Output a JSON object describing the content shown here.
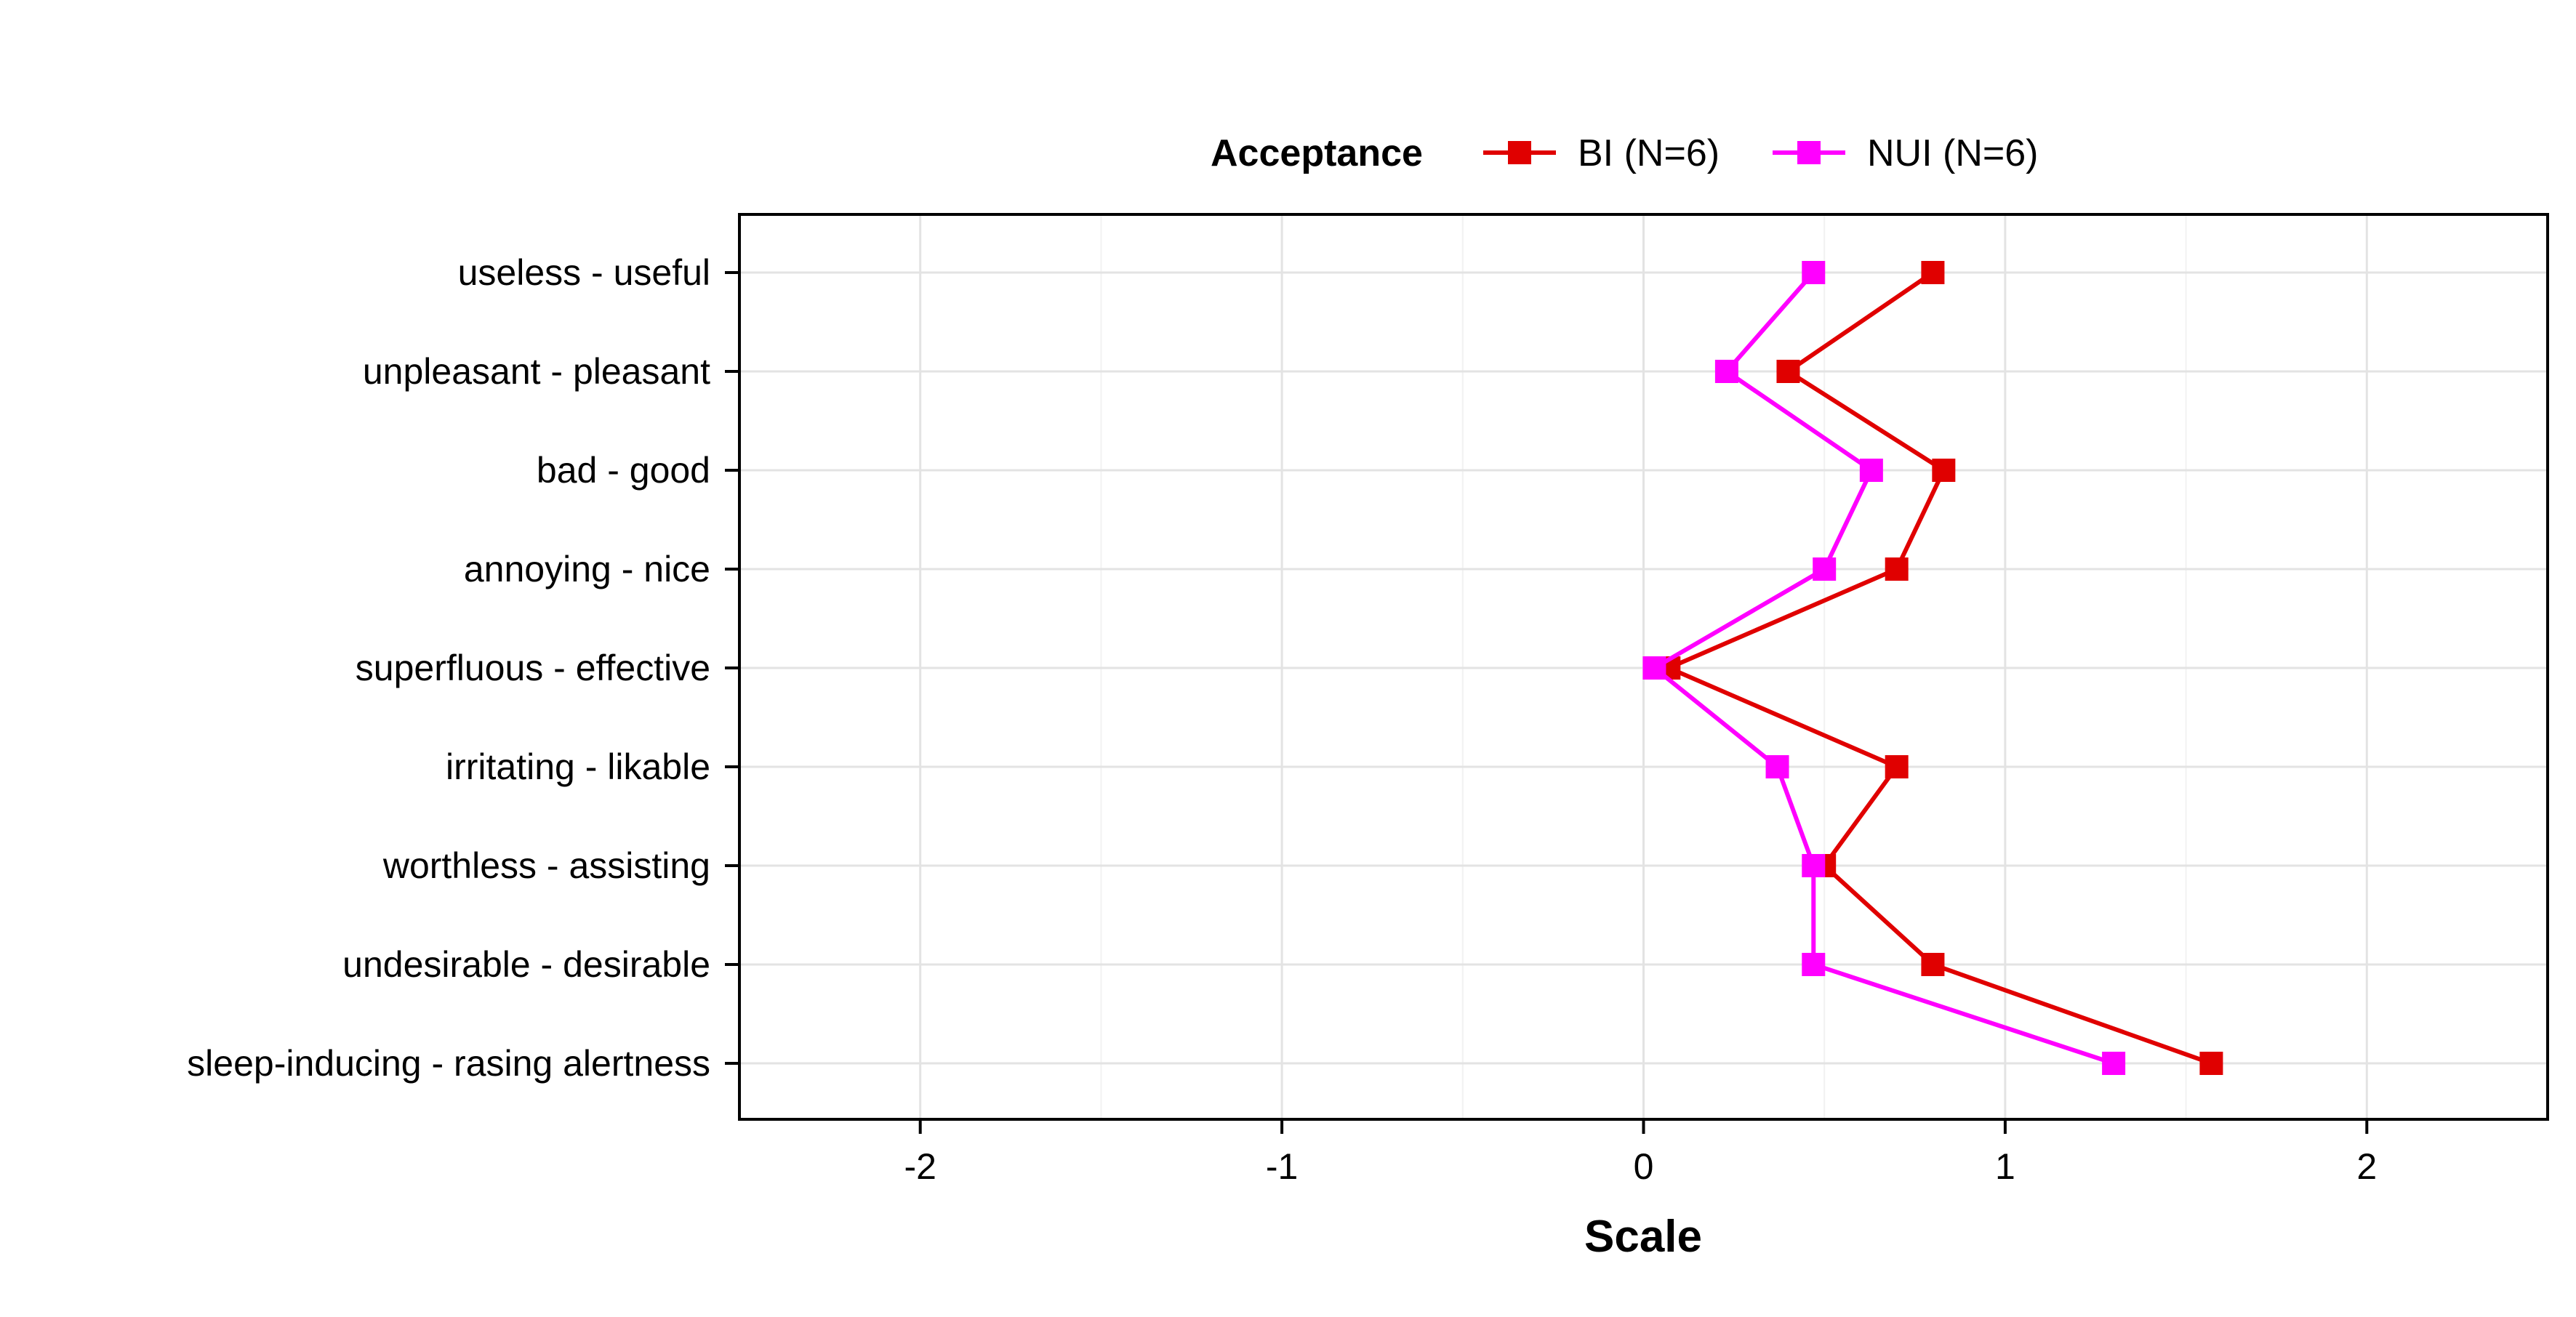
{
  "chart_data": {
    "type": "line",
    "orientation": "horizontal",
    "xlabel": "Scale",
    "ylabel": "",
    "xlim": [
      -2.5,
      2.5
    ],
    "x_ticks": [
      -2,
      -1,
      0,
      1,
      2
    ],
    "x_tick_labels": [
      "-2",
      "-1",
      "0",
      "1",
      "2"
    ],
    "grid": true,
    "legend": {
      "title": "Acceptance",
      "position": "top"
    },
    "categories": [
      "useless - useful",
      "unpleasant - pleasant",
      "bad - good",
      "annoying - nice",
      "superfluous - effective",
      "irritating - likable",
      "worthless - assisting",
      "undesirable - desirable",
      "sleep-inducing - rasing alertness"
    ],
    "series": [
      {
        "name": "BI (N=6)",
        "color": "#e00000",
        "marker": "square",
        "values": [
          0.8,
          0.4,
          0.83,
          0.7,
          0.07,
          0.7,
          0.5,
          0.8,
          1.57
        ]
      },
      {
        "name": "NUI (N=6)",
        "color": "#ff00ff",
        "marker": "square",
        "values": [
          0.47,
          0.23,
          0.63,
          0.5,
          0.03,
          0.37,
          0.47,
          0.47,
          1.3
        ]
      }
    ]
  }
}
